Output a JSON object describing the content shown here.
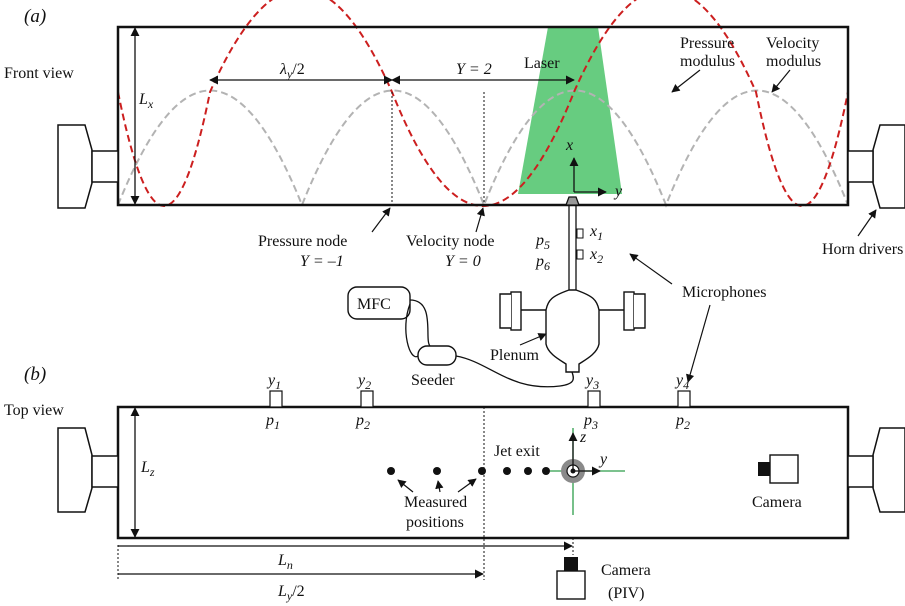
{
  "panel_a": {
    "label": "(a)",
    "view_label": "Front view",
    "lambda_label": "λ",
    "lambda_sub": "y",
    "lambda_suffix": "/2",
    "y2_label": "Y = 2",
    "laser_label": "Laser",
    "pressure_modulus_line1": "Pressure",
    "pressure_modulus_line2": "modulus",
    "velocity_modulus_line1": "Velocity",
    "velocity_modulus_line2": "modulus",
    "lx_label": "L",
    "lx_sub": "x",
    "axis_x": "x",
    "axis_y": "y",
    "p5": "p",
    "p5_sub": "5",
    "p6": "p",
    "p6_sub": "6",
    "x1": "x",
    "x1_sub": "1",
    "x2": "x",
    "x2_sub": "2",
    "pressure_node_line1": "Pressure node",
    "pressure_node_line2": "Y = –1",
    "velocity_node_line1": "Velocity node",
    "velocity_node_line2": "Y = 0",
    "horn_drivers": "Horn drivers",
    "microphones": "Microphones",
    "mfc": "MFC",
    "seeder": "Seeder",
    "plenum": "Plenum"
  },
  "panel_b": {
    "label": "(b)",
    "view_label": "Top view",
    "y1": "y",
    "y1_sub": "1",
    "y2": "y",
    "y2_sub": "2",
    "y3": "y",
    "y3_sub": "3",
    "y4": "y",
    "y4_sub": "4",
    "p1": "p",
    "p1_sub": "1",
    "p2": "p",
    "p2_sub": "2",
    "p3": "p",
    "p3_sub": "3",
    "p2b": "p",
    "p2b_sub": "2",
    "lz": "L",
    "lz_sub": "z",
    "jet_exit": "Jet exit",
    "axis_z": "z",
    "axis_y": "y",
    "measured_line1": "Measured",
    "measured_line2": "positions",
    "camera": "Camera",
    "ln": "L",
    "ln_sub": "n",
    "ly": "L",
    "ly_sub": "y",
    "ly_suffix": "/2",
    "camera_piv_line1": "Camera",
    "camera_piv_line2": "(PIV)"
  },
  "colors": {
    "pressure": "#cc1f1f",
    "velocity": "#b3b3b3",
    "laser": "#4cc36a",
    "laser_line": "#2e9e4a",
    "gray_ring": "#8a8a8a"
  }
}
